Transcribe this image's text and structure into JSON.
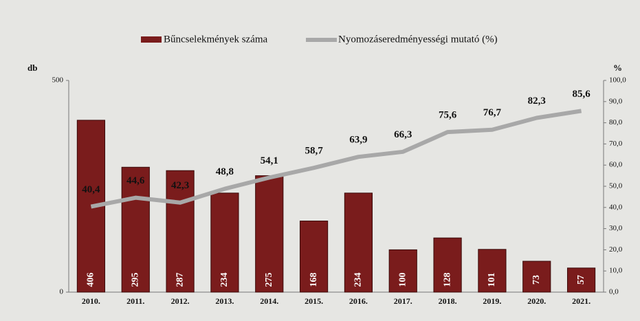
{
  "chart_data": {
    "type": "bar_line",
    "categories": [
      "2010.",
      "2011.",
      "2012.",
      "2013.",
      "2014.",
      "2015.",
      "2016.",
      "2017.",
      "2018.",
      "2019.",
      "2020.",
      "2021."
    ],
    "series": [
      {
        "name": "Bűncselekmények száma",
        "color": "#7a1c1c",
        "axis": "y",
        "values": [
          406,
          295,
          287,
          234,
          275,
          168,
          234,
          100,
          128,
          101,
          73,
          57
        ]
      },
      {
        "name": "Nyomozáseredményességi mutató (%)",
        "color": "#a8a8a8",
        "axis": "y2",
        "values": [
          40.4,
          44.6,
          42.3,
          48.8,
          54.1,
          58.7,
          63.9,
          66.3,
          75.6,
          76.7,
          82.3,
          85.6
        ],
        "value_labels": [
          "40,4",
          "44,6",
          "42,3",
          "48,8",
          "54,1",
          "58,7",
          "63,9",
          "66,3",
          "75,6",
          "76,7",
          "82,3",
          "85,6"
        ]
      }
    ],
    "y_label": "db",
    "y2_label": "%",
    "ylim": [
      0,
      500
    ],
    "yticks": [
      0,
      500
    ],
    "y2lim": [
      0,
      100
    ],
    "y2ticks": [
      {
        "value": 0,
        "label": "0,0"
      },
      {
        "value": 10,
        "label": "10,0"
      },
      {
        "value": 20,
        "label": "20,0"
      },
      {
        "value": 30,
        "label": "30,0"
      },
      {
        "value": 40,
        "label": "40,0"
      },
      {
        "value": 50,
        "label": "50,0"
      },
      {
        "value": 60,
        "label": "60,0"
      },
      {
        "value": 70,
        "label": "70,0"
      },
      {
        "value": 80,
        "label": "80,0"
      },
      {
        "value": 90,
        "label": "90,0"
      },
      {
        "value": 100,
        "label": "100,0"
      }
    ]
  }
}
